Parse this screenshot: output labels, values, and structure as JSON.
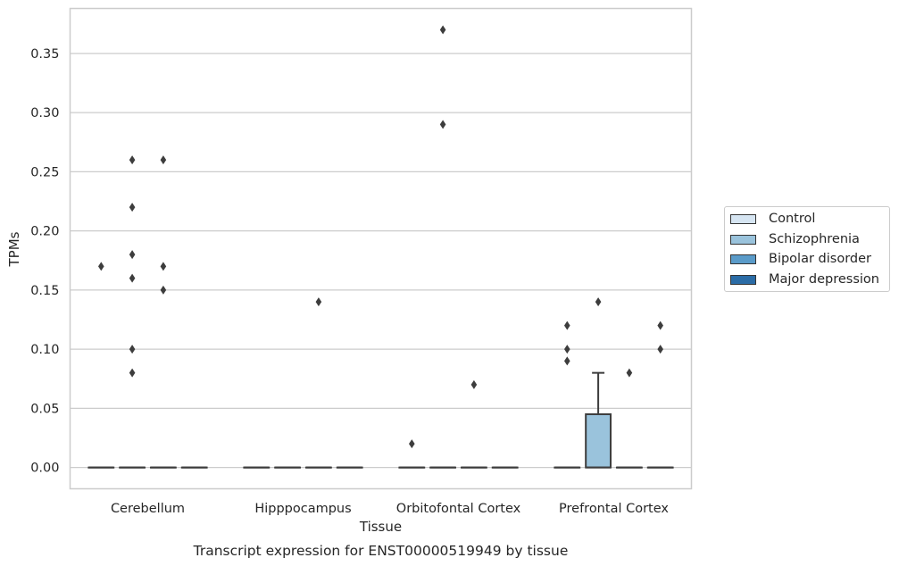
{
  "chart_data": {
    "type": "box",
    "xlabel": "Tissue",
    "ylabel": "TPMs",
    "caption": "Transcript expression for ENST00000519949 by tissue",
    "categories": [
      "Cerebellum",
      "Hipppocampus",
      "Orbitofontal Cortex",
      "Prefrontal Cortex"
    ],
    "ylim": [
      -0.018,
      0.388
    ],
    "yticks": [
      0.0,
      0.05,
      0.1,
      0.15,
      0.2,
      0.25,
      0.3,
      0.35
    ],
    "ytick_labels": [
      "0.00",
      "0.05",
      "0.10",
      "0.15",
      "0.20",
      "0.25",
      "0.30",
      "0.35"
    ],
    "grid": "horizontal",
    "legend_position": "right",
    "series": [
      {
        "name": "Control",
        "color": "#d6e5f2",
        "boxes": [
          {
            "q1": 0,
            "median": 0,
            "q3": 0,
            "whisker_low": 0,
            "whisker_high": 0,
            "outliers": [
              0.17
            ]
          },
          {
            "q1": 0,
            "median": 0,
            "q3": 0,
            "whisker_low": 0,
            "whisker_high": 0,
            "outliers": []
          },
          {
            "q1": 0,
            "median": 0,
            "q3": 0,
            "whisker_low": 0,
            "whisker_high": 0,
            "outliers": [
              0.02
            ]
          },
          {
            "q1": 0,
            "median": 0,
            "q3": 0,
            "whisker_low": 0,
            "whisker_high": 0,
            "outliers": [
              0.12,
              0.1,
              0.09
            ]
          }
        ]
      },
      {
        "name": "Schizophrenia",
        "color": "#9ac3dc",
        "boxes": [
          {
            "q1": 0,
            "median": 0,
            "q3": 0,
            "whisker_low": 0,
            "whisker_high": 0,
            "outliers": [
              0.26,
              0.22,
              0.18,
              0.16,
              0.1,
              0.08
            ]
          },
          {
            "q1": 0,
            "median": 0,
            "q3": 0,
            "whisker_low": 0,
            "whisker_high": 0,
            "outliers": []
          },
          {
            "q1": 0,
            "median": 0,
            "q3": 0,
            "whisker_low": 0,
            "whisker_high": 0,
            "outliers": [
              0.29,
              0.37
            ]
          },
          {
            "q1": 0,
            "median": 0,
            "q3": 0.045,
            "whisker_low": 0,
            "whisker_high": 0.08,
            "outliers": [
              0.14
            ]
          }
        ]
      },
      {
        "name": "Bipolar disorder",
        "color": "#5a9bc9",
        "boxes": [
          {
            "q1": 0,
            "median": 0,
            "q3": 0,
            "whisker_low": 0,
            "whisker_high": 0,
            "outliers": [
              0.26,
              0.17,
              0.15
            ]
          },
          {
            "q1": 0,
            "median": 0,
            "q3": 0,
            "whisker_low": 0,
            "whisker_high": 0,
            "outliers": [
              0.14
            ]
          },
          {
            "q1": 0,
            "median": 0,
            "q3": 0,
            "whisker_low": 0,
            "whisker_high": 0,
            "outliers": [
              0.07
            ]
          },
          {
            "q1": 0,
            "median": 0,
            "q3": 0,
            "whisker_low": 0,
            "whisker_high": 0,
            "outliers": [
              0.08
            ]
          }
        ]
      },
      {
        "name": "Major depression",
        "color": "#2b6ca6",
        "boxes": [
          {
            "q1": 0,
            "median": 0,
            "q3": 0,
            "whisker_low": 0,
            "whisker_high": 0,
            "outliers": []
          },
          {
            "q1": 0,
            "median": 0,
            "q3": 0,
            "whisker_low": 0,
            "whisker_high": 0,
            "outliers": []
          },
          {
            "q1": 0,
            "median": 0,
            "q3": 0,
            "whisker_low": 0,
            "whisker_high": 0,
            "outliers": []
          },
          {
            "q1": 0,
            "median": 0,
            "q3": 0,
            "whisker_low": 0,
            "whisker_high": 0,
            "outliers": [
              0.12,
              0.1
            ]
          }
        ]
      }
    ]
  }
}
